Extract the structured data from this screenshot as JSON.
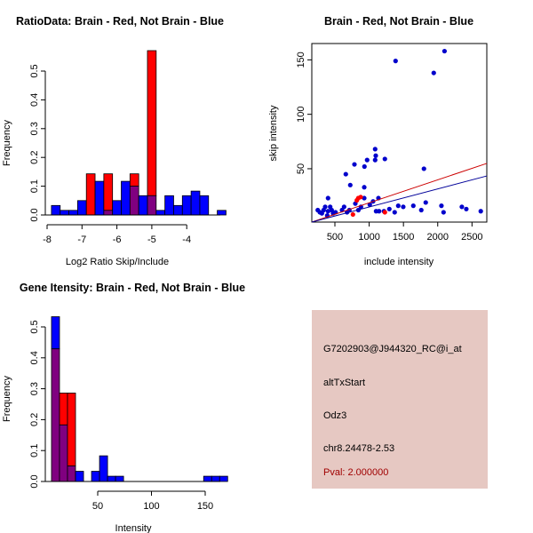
{
  "chart_data": [
    {
      "id": "ratio-hist",
      "type": "bar",
      "subtype": "overlaid-histogram",
      "title": "RatioData: Brain - Red, Not Brain - Blue",
      "xlabel": "Log2 Ratio Skip/Include",
      "ylabel": "Frequency",
      "xlim": [
        -8,
        -3
      ],
      "ylim": [
        0,
        0.55
      ],
      "xticks": [
        -8,
        -7,
        -6,
        -5,
        -4
      ],
      "xtick_labels": [
        "-8",
        "-7",
        "-6",
        "-5",
        "-4"
      ],
      "yticks": [
        0,
        0.1,
        0.2,
        0.3,
        0.4,
        0.5
      ],
      "ytick_labels": [
        "0.0",
        "0.1",
        "0.2",
        "0.3",
        "0.4",
        "0.5"
      ],
      "bin_start": -7.875,
      "bin_width": 0.25,
      "series": [
        {
          "name": "Not Brain",
          "color": "#0000ff",
          "values": [
            0.033,
            0.016,
            0.016,
            0.05,
            0,
            0.117,
            0.016,
            0.05,
            0.117,
            0.1,
            0.067,
            0.067,
            0.016,
            0.067,
            0.033,
            0.067,
            0.083,
            0.067,
            0,
            0.016
          ]
        },
        {
          "name": "Brain",
          "color": "#ff0000",
          "values": [
            0,
            0,
            0,
            0,
            0.143,
            0,
            0.143,
            0,
            0,
            0.143,
            0,
            0.571,
            0,
            0,
            0,
            0,
            0,
            0,
            0,
            0
          ]
        }
      ],
      "overlap_color": "#800080"
    },
    {
      "id": "scatter",
      "type": "scatter",
      "title": "Brain - Red, Not Brain - Blue",
      "xlabel": "include intensity",
      "ylabel": "skip intensity",
      "xlim": [
        163,
        2716
      ],
      "ylim": [
        1,
        165
      ],
      "xticks": [
        500,
        1000,
        1500,
        2000,
        2500
      ],
      "xtick_labels": [
        "500",
        "1000",
        "1500",
        "2000",
        "2500"
      ],
      "yticks": [
        50,
        100,
        150
      ],
      "ytick_labels": [
        "50",
        "100",
        "150"
      ],
      "series": [
        {
          "name": "Not Brain",
          "color": "#0000cc",
          "points": [
            [
              2099,
              158
            ],
            [
              1385,
              149
            ],
            [
              1942,
              138
            ],
            [
              1087,
              68
            ],
            [
              1096,
              62
            ],
            [
              1087,
              58
            ],
            [
              970,
              58
            ],
            [
              1229,
              59
            ],
            [
              785,
              54
            ],
            [
              931,
              52
            ],
            [
              1799,
              50
            ],
            [
              659,
              45
            ],
            [
              724,
              35
            ],
            [
              928,
              33
            ],
            [
              400,
              23
            ],
            [
              928,
              23
            ],
            [
              1135,
              23
            ],
            [
              1057,
              20
            ],
            [
              1009,
              17
            ],
            [
              798,
              18
            ],
            [
              1825,
              19
            ],
            [
              1424,
              16
            ],
            [
              1497,
              15
            ],
            [
              1644,
              16
            ],
            [
              2054,
              16
            ],
            [
              2352,
              15
            ],
            [
              2417,
              13
            ],
            [
              2628,
              11
            ],
            [
              2085,
              10
            ],
            [
              1760,
              12
            ],
            [
              1372,
              10
            ],
            [
              1294,
              13
            ],
            [
              1216,
              11
            ],
            [
              1101,
              11
            ],
            [
              1144,
              11
            ],
            [
              880,
              15
            ],
            [
              842,
              12
            ],
            [
              677,
              10
            ],
            [
              634,
              15
            ],
            [
              604,
              12
            ],
            [
              711,
              12
            ],
            [
              509,
              10
            ],
            [
              453,
              12
            ],
            [
              431,
              15
            ],
            [
              400,
              11
            ],
            [
              358,
              15
            ],
            [
              336,
              12
            ],
            [
              280,
              10
            ],
            [
              250,
              12
            ],
            [
              310,
              9
            ],
            [
              474,
              9
            ],
            [
              388,
              7
            ]
          ],
          "fit": {
            "intercept": -1.7,
            "slope": 0.0166
          }
        },
        {
          "name": "Brain",
          "color": "#ff0000",
          "points": [
            [
              841,
              23
            ],
            [
              876,
              24
            ],
            [
              820,
              21
            ],
            [
              763,
              8
            ],
            [
              1229,
              10
            ]
          ],
          "fit": {
            "intercept": -2.4,
            "slope": 0.0211
          }
        }
      ]
    },
    {
      "id": "intensity-hist",
      "type": "bar",
      "subtype": "overlaid-histogram",
      "title": "Gene Itensity: Brain - Red, Not Brain - Blue",
      "xlabel": "Intensity",
      "ylabel": "Frequency",
      "xlim": [
        0,
        165
      ],
      "ylim": [
        0,
        0.53
      ],
      "xticks": [
        50,
        100,
        150
      ],
      "xtick_labels": [
        "50",
        "100",
        "150"
      ],
      "yticks": [
        0,
        0.1,
        0.2,
        0.3,
        0.4,
        0.5
      ],
      "ytick_labels": [
        "0.0",
        "0.1",
        "0.2",
        "0.3",
        "0.4",
        "0.5"
      ],
      "bin_start": 7,
      "bin_width": 7.45,
      "series": [
        {
          "name": "Not Brain",
          "color": "#0000ff",
          "values": [
            0.533,
            0.183,
            0.05,
            0.033,
            0,
            0.033,
            0.083,
            0.017,
            0.017,
            0,
            0,
            0,
            0,
            0,
            0,
            0,
            0,
            0,
            0,
            0.017,
            0.017,
            0.017
          ]
        },
        {
          "name": "Brain",
          "color": "#ff0000",
          "values": [
            0.429,
            0.286,
            0.286,
            0,
            0,
            0,
            0,
            0,
            0,
            0,
            0,
            0,
            0,
            0,
            0,
            0,
            0,
            0,
            0,
            0,
            0,
            0
          ]
        }
      ],
      "overlap_color": "#800080"
    }
  ],
  "info_panel": {
    "background": "#e6c8c2",
    "probe_id": "G7202903@J944320_RC@i_at",
    "event_type": "altTxStart",
    "gene": "Odz3",
    "location": "chr8.24478-2.53",
    "pval": "Pval: 2.000000",
    "pval_color": "#a00000"
  }
}
